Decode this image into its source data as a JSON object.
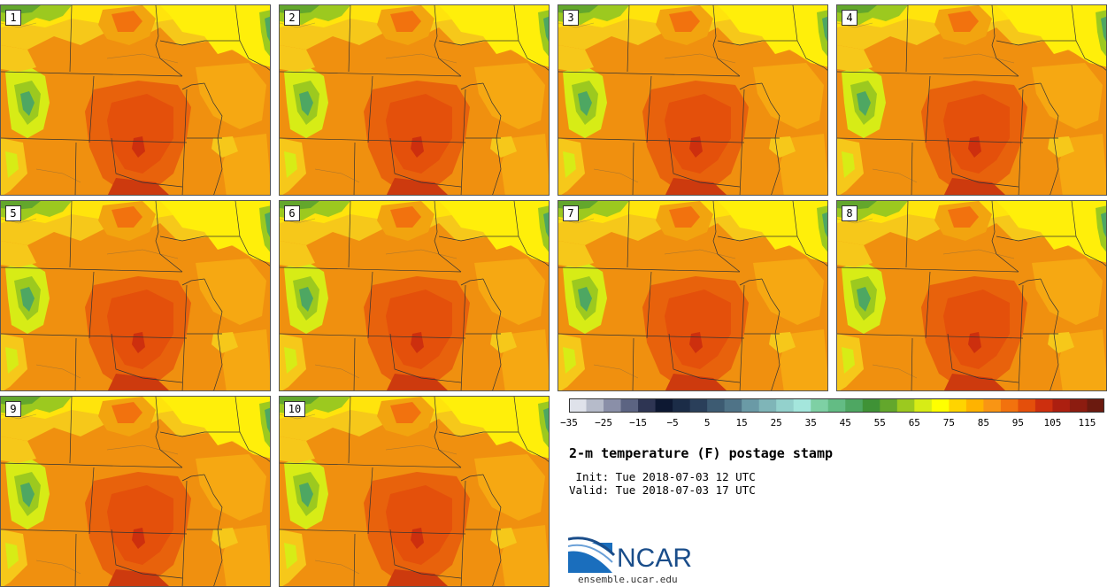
{
  "map": {
    "title": "2-m temperature (F) postage stamp",
    "init": " Init: Tue 2018-07-03 12 UTC",
    "valid": "Valid: Tue 2018-07-03 17 UTC",
    "members": [
      "1",
      "2",
      "3",
      "4",
      "5",
      "6",
      "7",
      "8",
      "9",
      "10"
    ],
    "colorbar": {
      "colors": [
        "#dfe2ea",
        "#b6bbca",
        "#8a8fa8",
        "#5c6482",
        "#2e3553",
        "#0d1832",
        "#1b2c47",
        "#2a3f5a",
        "#3d5b72",
        "#4f7387",
        "#6a9aa6",
        "#7fb5b8",
        "#93d1cc",
        "#a4e6dc",
        "#7ed0a4",
        "#63bc84",
        "#4ea762",
        "#3f9236",
        "#63a72c",
        "#9cc91f",
        "#d7ec16",
        "#ffff00",
        "#ffd400",
        "#ffb300",
        "#f99514",
        "#f2720e",
        "#e44f0b",
        "#cd2f0e",
        "#ac1f10",
        "#8c1c10",
        "#6b1a0f"
      ],
      "tick_labels": [
        "-35",
        "-25",
        "-15",
        "-5",
        "5",
        "15",
        "25",
        "35",
        "45",
        "55",
        "65",
        "75",
        "85",
        "95",
        "105",
        "115"
      ]
    },
    "logo": {
      "name": "NCAR",
      "site": "ensemble.ucar.edu"
    }
  }
}
